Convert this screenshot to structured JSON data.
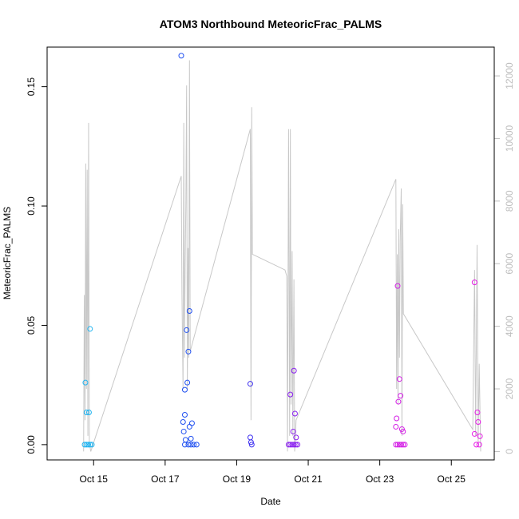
{
  "chart_data": {
    "type": "scatter",
    "title": "ATOM3 Northbound MeteoricFrac_PALMS",
    "xlabel": "Date",
    "ylabel": "MeteoricFrac_PALMS",
    "x_tick_labels": [
      "Oct 15",
      "Oct 17",
      "Oct 19",
      "Oct 21",
      "Oct 23",
      "Oct 25"
    ],
    "x_ticks_day": [
      15,
      17,
      19,
      21,
      23,
      25
    ],
    "xlim_day": [
      13.7,
      26.2
    ],
    "ylim": [
      -0.0064,
      0.1666
    ],
    "y_ticks": [
      0.0,
      0.05,
      0.1,
      0.15
    ],
    "y_tick_labels": [
      "0.00",
      "0.05",
      "0.10",
      "0.15"
    ],
    "y2_label": "",
    "y2_ticks": [
      0,
      2000,
      4000,
      6000,
      8000,
      10000,
      12000
    ],
    "y2_tick_labels": [
      "0",
      "2000",
      "4000",
      "6000",
      "8000",
      "10000",
      "12000"
    ],
    "y2lim": [
      -270,
      12920
    ],
    "grid": false,
    "colors": {
      "day_start": "#1fb3f0",
      "day_mid": "#1f4ff0",
      "day_purple": "#8a1ff0",
      "day_end": "#e61fe6",
      "altitude_line": "#c8c8c8"
    },
    "series": [
      {
        "type": "scatter",
        "points": [
          {
            "day": 14.75,
            "y": 0.0,
            "c": "#1fb3f0"
          },
          {
            "day": 14.8,
            "y": 0.0,
            "c": "#1fb3f0"
          },
          {
            "day": 14.85,
            "y": 0.0,
            "c": "#1fb3f0"
          },
          {
            "day": 14.9,
            "y": 0.0,
            "c": "#1fb3f0"
          },
          {
            "day": 14.95,
            "y": 0.0,
            "c": "#1fb3f0"
          },
          {
            "day": 14.77,
            "y": 0.026,
            "c": "#1fb3f0"
          },
          {
            "day": 14.8,
            "y": 0.0135,
            "c": "#1fb3f0"
          },
          {
            "day": 14.87,
            "y": 0.0135,
            "c": "#1fb3f0"
          },
          {
            "day": 14.9,
            "y": 0.0485,
            "c": "#1fb3f0"
          },
          {
            "day": 17.45,
            "y": 0.163,
            "c": "#1f4ff0"
          },
          {
            "day": 17.5,
            "y": 0.0095,
            "c": "#1f4ff0"
          },
          {
            "day": 17.52,
            "y": 0.0055,
            "c": "#1f4ff0"
          },
          {
            "day": 17.55,
            "y": 0.0125,
            "c": "#1f4ff0"
          },
          {
            "day": 17.55,
            "y": 0.023,
            "c": "#1f4ff0"
          },
          {
            "day": 17.57,
            "y": 0.002,
            "c": "#1f4ff0"
          },
          {
            "day": 17.6,
            "y": 0.048,
            "c": "#1f4ff0"
          },
          {
            "day": 17.62,
            "y": 0.026,
            "c": "#1f4ff0"
          },
          {
            "day": 17.65,
            "y": 0.039,
            "c": "#1f4ff0"
          },
          {
            "day": 17.68,
            "y": 0.056,
            "c": "#1f4ff0"
          },
          {
            "day": 17.68,
            "y": 0.0075,
            "c": "#1f4ff0"
          },
          {
            "day": 17.72,
            "y": 0.0025,
            "c": "#1f4ff0"
          },
          {
            "day": 17.75,
            "y": 0.009,
            "c": "#1f4ff0"
          },
          {
            "day": 17.55,
            "y": 0.0,
            "c": "#1f4ff0"
          },
          {
            "day": 17.65,
            "y": 0.0,
            "c": "#1f4ff0"
          },
          {
            "day": 17.72,
            "y": 0.0,
            "c": "#1f4ff0"
          },
          {
            "day": 17.8,
            "y": 0.0,
            "c": "#1f4ff0"
          },
          {
            "day": 17.88,
            "y": 0.0,
            "c": "#1f4ff0"
          },
          {
            "day": 19.38,
            "y": 0.0255,
            "c": "#3d2ff0"
          },
          {
            "day": 19.38,
            "y": 0.003,
            "c": "#3d2ff0"
          },
          {
            "day": 19.4,
            "y": 0.001,
            "c": "#3d2ff0"
          },
          {
            "day": 19.42,
            "y": 0.0,
            "c": "#3d2ff0"
          },
          {
            "day": 20.45,
            "y": 0.0,
            "c": "#8a1ff0"
          },
          {
            "day": 20.5,
            "y": 0.0,
            "c": "#8a1ff0"
          },
          {
            "day": 20.55,
            "y": 0.0,
            "c": "#8a1ff0"
          },
          {
            "day": 20.6,
            "y": 0.0,
            "c": "#8a1ff0"
          },
          {
            "day": 20.65,
            "y": 0.0,
            "c": "#8a1ff0"
          },
          {
            "day": 20.7,
            "y": 0.0,
            "c": "#8a1ff0"
          },
          {
            "day": 20.5,
            "y": 0.021,
            "c": "#8a1ff0"
          },
          {
            "day": 20.58,
            "y": 0.0055,
            "c": "#8a1ff0"
          },
          {
            "day": 20.6,
            "y": 0.031,
            "c": "#8a1ff0"
          },
          {
            "day": 20.63,
            "y": 0.013,
            "c": "#8a1ff0"
          },
          {
            "day": 20.66,
            "y": 0.003,
            "c": "#8a1ff0"
          },
          {
            "day": 23.45,
            "y": 0.0,
            "c": "#d41fe6"
          },
          {
            "day": 23.5,
            "y": 0.0,
            "c": "#d41fe6"
          },
          {
            "day": 23.55,
            "y": 0.0,
            "c": "#d41fe6"
          },
          {
            "day": 23.6,
            "y": 0.0,
            "c": "#d41fe6"
          },
          {
            "day": 23.65,
            "y": 0.0,
            "c": "#d41fe6"
          },
          {
            "day": 23.7,
            "y": 0.0,
            "c": "#d41fe6"
          },
          {
            "day": 23.45,
            "y": 0.0075,
            "c": "#d41fe6"
          },
          {
            "day": 23.47,
            "y": 0.011,
            "c": "#d41fe6"
          },
          {
            "day": 23.5,
            "y": 0.0665,
            "c": "#d41fe6"
          },
          {
            "day": 23.52,
            "y": 0.018,
            "c": "#d41fe6"
          },
          {
            "day": 23.55,
            "y": 0.0275,
            "c": "#d41fe6"
          },
          {
            "day": 23.58,
            "y": 0.0205,
            "c": "#d41fe6"
          },
          {
            "day": 23.62,
            "y": 0.0065,
            "c": "#d41fe6"
          },
          {
            "day": 23.65,
            "y": 0.0055,
            "c": "#d41fe6"
          },
          {
            "day": 25.65,
            "y": 0.068,
            "c": "#e61fe6"
          },
          {
            "day": 25.65,
            "y": 0.0045,
            "c": "#e61fe6"
          },
          {
            "day": 25.7,
            "y": 0.0,
            "c": "#e61fe6"
          },
          {
            "day": 25.73,
            "y": 0.0135,
            "c": "#e61fe6"
          },
          {
            "day": 25.75,
            "y": 0.0095,
            "c": "#e61fe6"
          },
          {
            "day": 25.78,
            "y": 0.0,
            "c": "#e61fe6"
          },
          {
            "day": 25.8,
            "y": 0.0035,
            "c": "#e61fe6"
          }
        ]
      },
      {
        "type": "line",
        "axis": "right",
        "points": [
          [
            14.72,
            0
          ],
          [
            14.74,
            5000
          ],
          [
            14.76,
            1000
          ],
          [
            14.78,
            9200
          ],
          [
            14.8,
            2000
          ],
          [
            14.82,
            9000
          ],
          [
            14.84,
            500
          ],
          [
            14.86,
            10500
          ],
          [
            14.88,
            300
          ],
          [
            14.92,
            0
          ],
          [
            17.45,
            8800
          ],
          [
            17.47,
            5000
          ],
          [
            17.5,
            2000
          ],
          [
            17.52,
            10500
          ],
          [
            17.54,
            3000
          ],
          [
            17.56,
            6000
          ],
          [
            17.58,
            8000
          ],
          [
            17.6,
            11700
          ],
          [
            17.62,
            2000
          ],
          [
            17.64,
            6500
          ],
          [
            17.66,
            3000
          ],
          [
            17.68,
            12500
          ],
          [
            17.7,
            3200
          ],
          [
            19.38,
            10300
          ],
          [
            19.4,
            1000
          ],
          [
            19.42,
            11000
          ],
          [
            19.44,
            6300
          ],
          [
            20.35,
            5800
          ],
          [
            20.4,
            5600
          ],
          [
            20.42,
            0
          ],
          [
            20.45,
            10300
          ],
          [
            20.48,
            500
          ],
          [
            20.5,
            10300
          ],
          [
            20.52,
            1500
          ],
          [
            20.55,
            6400
          ],
          [
            20.57,
            500
          ],
          [
            20.6,
            5500
          ],
          [
            20.62,
            0
          ],
          [
            20.66,
            1000
          ],
          [
            23.45,
            8700
          ],
          [
            23.47,
            2000
          ],
          [
            23.49,
            6300
          ],
          [
            23.51,
            1500
          ],
          [
            23.53,
            7100
          ],
          [
            23.55,
            3000
          ],
          [
            23.57,
            6700
          ],
          [
            23.6,
            8400
          ],
          [
            23.62,
            500
          ],
          [
            23.64,
            7900
          ],
          [
            23.66,
            4400
          ],
          [
            25.6,
            700
          ],
          [
            25.65,
            5800
          ],
          [
            25.68,
            500
          ],
          [
            25.72,
            6600
          ],
          [
            25.75,
            300
          ],
          [
            25.78,
            2800
          ],
          [
            25.82,
            0
          ]
        ]
      }
    ]
  }
}
